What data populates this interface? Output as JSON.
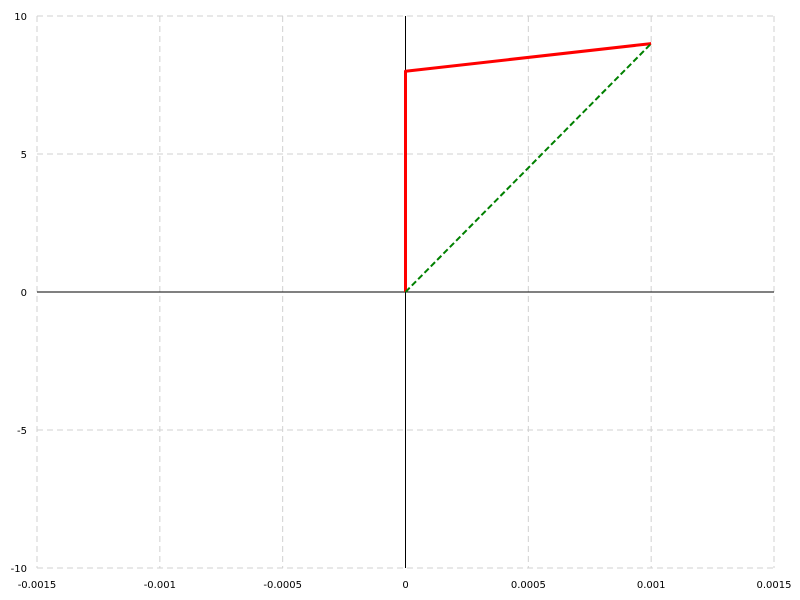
{
  "chart_data": {
    "type": "line",
    "title": "",
    "xlabel": "",
    "ylabel": "",
    "xlim": [
      -0.0015,
      0.0015
    ],
    "ylim": [
      -10,
      10
    ],
    "grid": true,
    "x_ticks": [
      {
        "value": -0.0015,
        "label": "-0.0015"
      },
      {
        "value": -0.001,
        "label": "-0.001"
      },
      {
        "value": -0.0005,
        "label": "-0.0005"
      },
      {
        "value": 0,
        "label": "0"
      },
      {
        "value": 0.0005,
        "label": "0.0005"
      },
      {
        "value": 0.001,
        "label": "0.001"
      },
      {
        "value": 0.0015,
        "label": "0.0015"
      }
    ],
    "y_ticks": [
      {
        "value": -10,
        "label": "-10"
      },
      {
        "value": -5,
        "label": "-5"
      },
      {
        "value": 0,
        "label": "0"
      },
      {
        "value": 5,
        "label": "5"
      },
      {
        "value": 10,
        "label": "10"
      }
    ],
    "series": [
      {
        "style": "solid",
        "color": "#ff0000",
        "points": [
          [
            0,
            0
          ],
          [
            0,
            8
          ],
          [
            0.001,
            9
          ]
        ]
      },
      {
        "style": "dashed",
        "color": "#008000",
        "points": [
          [
            0,
            0
          ],
          [
            0.001,
            9
          ]
        ]
      }
    ]
  }
}
